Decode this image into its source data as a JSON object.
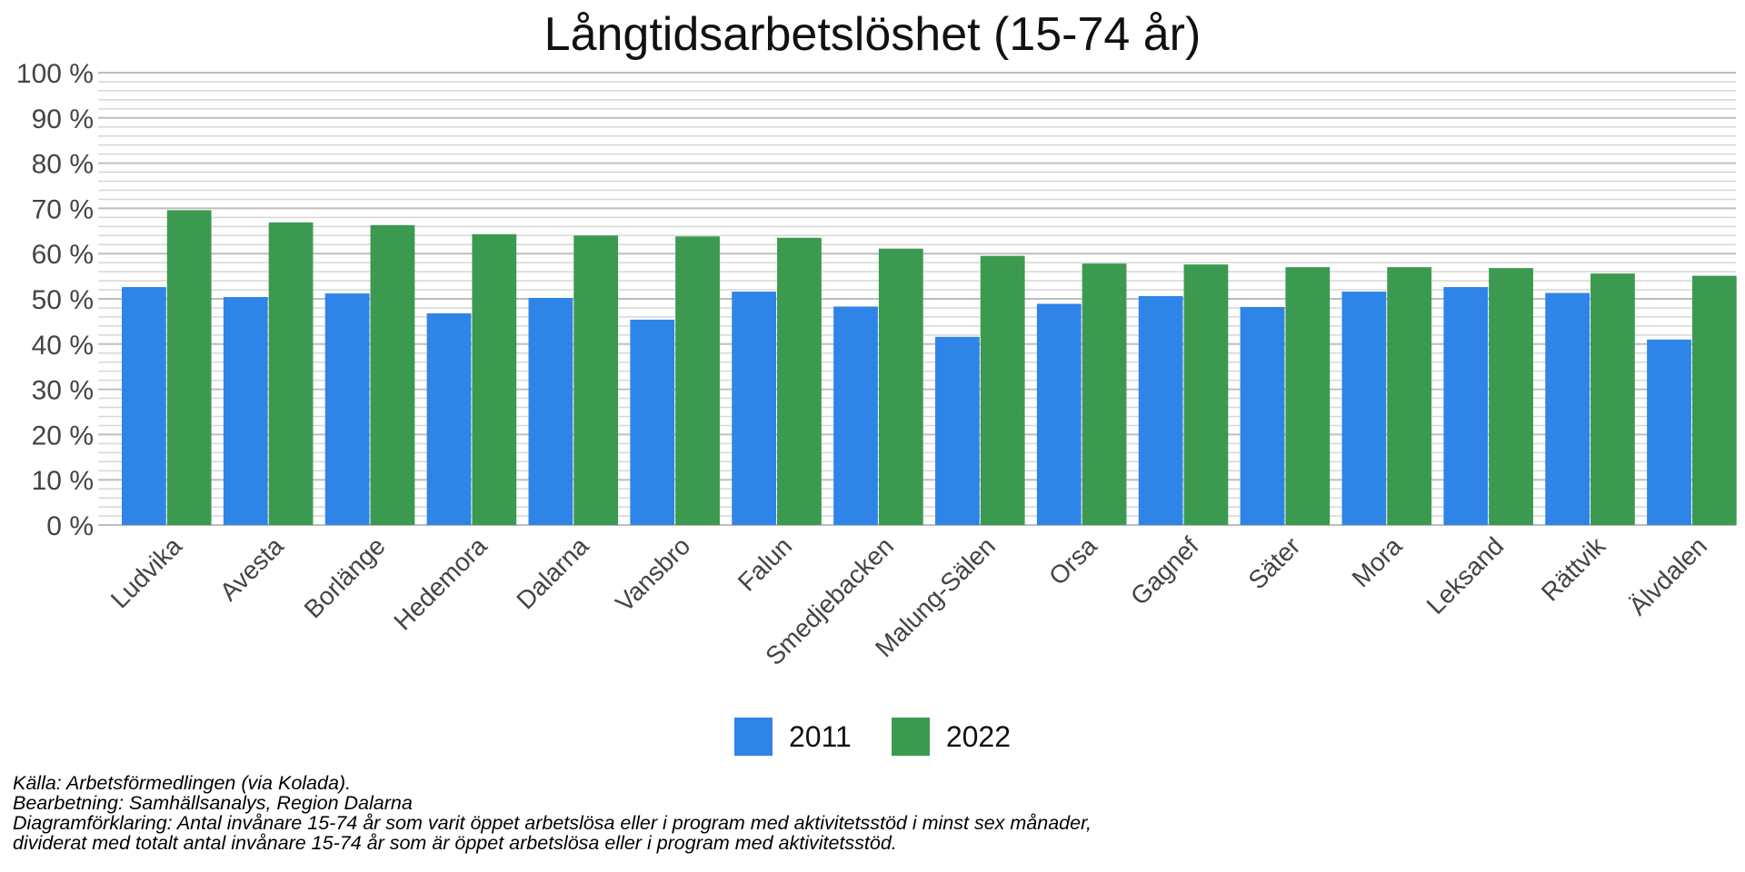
{
  "chart_data": {
    "type": "bar",
    "title": "Långtidsarbetslöshet (15-74 år)",
    "categories": [
      "Ludvika",
      "Avesta",
      "Borlänge",
      "Hedemora",
      "Dalarna",
      "Vansbro",
      "Falun",
      "Smedjebacken",
      "Malung-Sälen",
      "Orsa",
      "Gagnef",
      "Säter",
      "Mora",
      "Leksand",
      "Rättvik",
      "Älvdalen"
    ],
    "series": [
      {
        "name": "2011",
        "color": "#2f84e8",
        "values": [
          52.6,
          50.4,
          51.2,
          46.8,
          50.2,
          45.4,
          51.6,
          48.3,
          41.6,
          48.9,
          50.6,
          48.2,
          51.6,
          52.6,
          51.3,
          41.0
        ]
      },
      {
        "name": "2022",
        "color": "#3b9a4f",
        "values": [
          69.6,
          66.9,
          66.3,
          64.3,
          64.0,
          63.8,
          63.5,
          61.1,
          59.5,
          57.8,
          57.6,
          57.0,
          57.0,
          56.8,
          55.6,
          55.1
        ]
      }
    ],
    "ylim": [
      0,
      100
    ],
    "yticks": [
      "0 %",
      "10 %",
      "20 %",
      "30 %",
      "40 %",
      "50 %",
      "60 %",
      "70 %",
      "80 %",
      "90 %",
      "100 %"
    ],
    "grid": true,
    "legend_position": "bottom"
  },
  "notes": {
    "line1": "Källa: Arbetsförmedlingen (via Kolada).",
    "line2": "Bearbetning: Samhällsanalys, Region Dalarna",
    "line3": "Diagramförklaring: Antal invånare 15-74 år som varit öppet arbetslösa eller i program med aktivitetsstöd i minst sex månader,",
    "line4": "dividerat med totalt antal invånare 15-74 år som är öppet arbetslösa eller i program med aktivitetsstöd."
  }
}
